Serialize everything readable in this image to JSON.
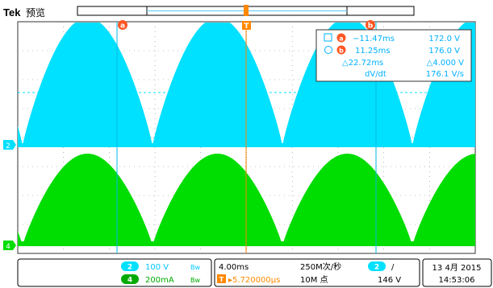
{
  "brand": "Tek",
  "mode": "预览",
  "colors": {
    "ch2": "#00e0ff",
    "ch4": "#00dd00",
    "trigger": "#ff8800",
    "cursor_badge": "#ff5522",
    "grid": "#7a7a7a",
    "readout_text": "#00b0ff"
  },
  "markers": {
    "trigger_letter": "T",
    "cursor_a": "a",
    "cursor_b": "b",
    "ch2": "2",
    "ch4": "4"
  },
  "readout": {
    "a_time": "−11.47ms",
    "a_value": "172.0 V",
    "b_time": "11.25ms",
    "b_value": "176.0 V",
    "delta_time": "△22.72ms",
    "delta_value": "△4.000 V",
    "dv_label": "dV/dt",
    "dv_value": "176.1 V/s"
  },
  "status": {
    "ch2_num": "2",
    "ch2_scale": "100 V",
    "ch2_bw": "Bw",
    "ch4_num": "4",
    "ch4_scale": "200mA",
    "ch4_bw": "Bw",
    "timebase": "4.00ms",
    "trig_delay": "▸5.720000µs",
    "sample_rate": "250M次/秒",
    "record_len": "10M 点",
    "trig_ch": "2",
    "trig_slope": "/",
    "trig_level": "146 V",
    "date": "13 4月 2015",
    "time": "14:53:06"
  }
}
